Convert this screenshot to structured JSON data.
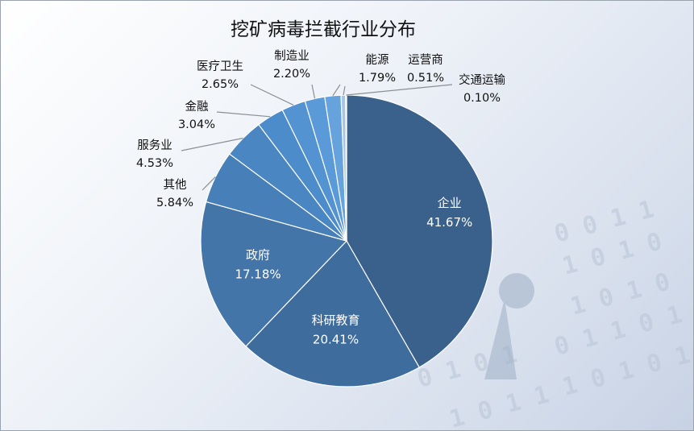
{
  "chart_data": {
    "type": "pie",
    "title": "挖矿病毒拦截行业分布",
    "slices": [
      {
        "name": "企业",
        "value": 41.67,
        "label": "41.67%",
        "color": "#3a618b"
      },
      {
        "name": "科研教育",
        "value": 20.41,
        "label": "20.41%",
        "color": "#3e6c9d"
      },
      {
        "name": "政府",
        "value": 17.18,
        "label": "17.18%",
        "color": "#4475a9"
      },
      {
        "name": "其他",
        "value": 5.84,
        "label": "5.84%",
        "color": "#477fb8"
      },
      {
        "name": "服务业",
        "value": 4.53,
        "label": "4.53%",
        "color": "#4a86c2"
      },
      {
        "name": "金融",
        "value": 3.04,
        "label": "3.04%",
        "color": "#4d8ccb"
      },
      {
        "name": "医疗卫生",
        "value": 2.65,
        "label": "2.65%",
        "color": "#5393d2"
      },
      {
        "name": "制造业",
        "value": 2.2,
        "label": "2.20%",
        "color": "#5a9ad8"
      },
      {
        "name": "能源",
        "value": 1.79,
        "label": "1.79%",
        "color": "#66a3dd"
      },
      {
        "name": "运营商",
        "value": 0.51,
        "label": "0.51%",
        "color": "#a8c6e4"
      },
      {
        "name": "交通运输",
        "value": 0.1,
        "label": "0.10%",
        "color": "#c5d8ec"
      }
    ],
    "legend": "none",
    "data_labels": "category name and percentage"
  }
}
